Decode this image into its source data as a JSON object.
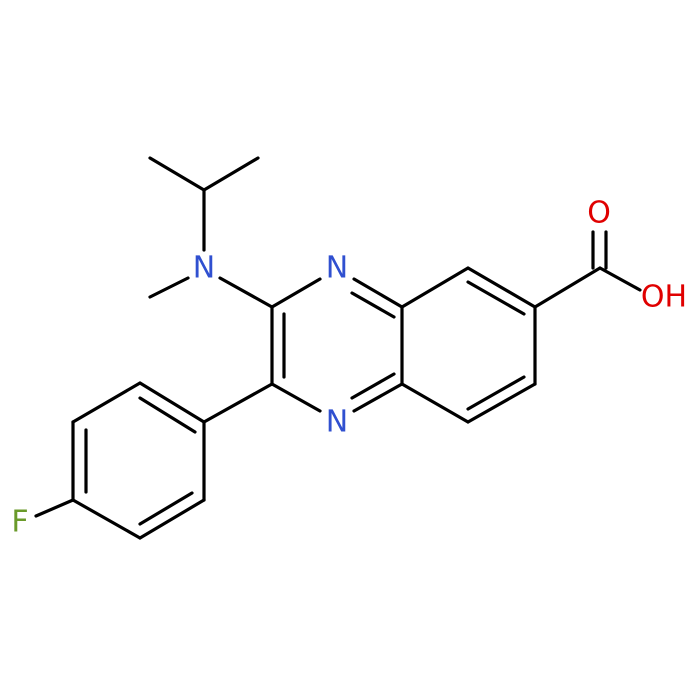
{
  "atoms": [
    {
      "label": "N"
    },
    {
      "label": "N"
    },
    {
      "label": "N"
    },
    {
      "label": "O"
    },
    {
      "label": "OH"
    },
    {
      "label": "F"
    }
  ]
}
